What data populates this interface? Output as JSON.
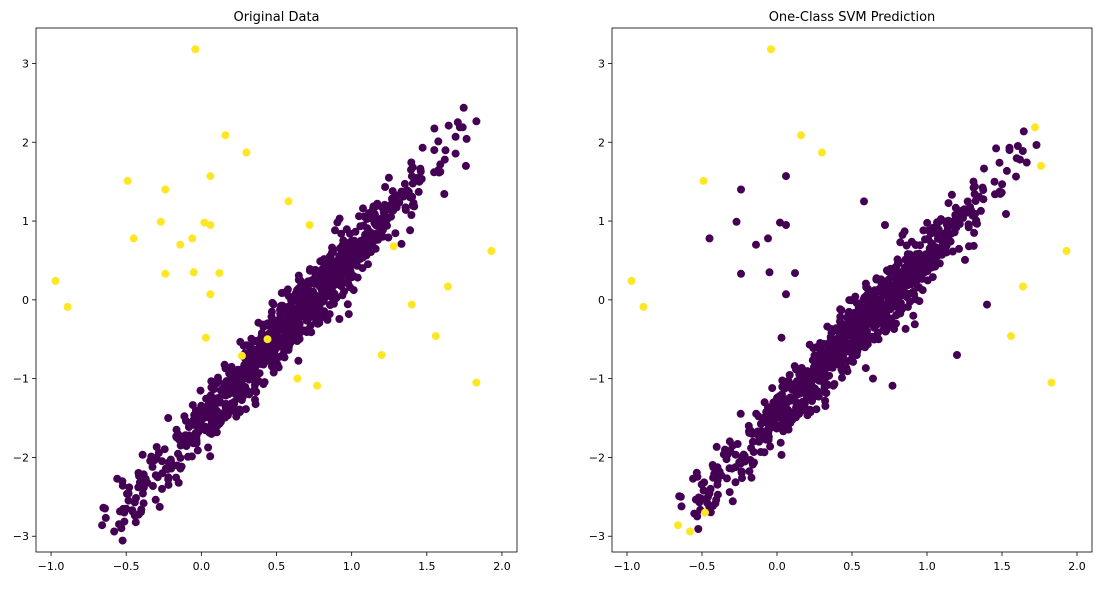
{
  "chart_data": [
    {
      "type": "scatter",
      "title": "Original Data",
      "xlabel": "",
      "ylabel": "",
      "xlim": [
        -1.1,
        2.1
      ],
      "ylim": [
        -3.2,
        3.45
      ],
      "xticks": [
        -1.0,
        -0.5,
        0.0,
        0.5,
        1.0,
        1.5,
        2.0
      ],
      "yticks": [
        -3,
        -2,
        -1,
        0,
        1,
        2,
        3
      ],
      "xtick_labels": [
        "−1.0",
        "−0.5",
        "0.0",
        "0.5",
        "1.0",
        "1.5",
        "2.0"
      ],
      "ytick_labels": [
        "−3",
        "−2",
        "−1",
        "0",
        "1",
        "2",
        "3"
      ],
      "grid": false,
      "legend": "none",
      "colormap": "viridis",
      "colors": {
        "normal": "#440154",
        "outlier": "#fde725"
      },
      "main_cluster": {
        "label": "normal",
        "trend_endpoints": [
          [
            -0.6,
            -2.85
          ],
          [
            1.75,
            2.2
          ]
        ],
        "point_count": 1000,
        "color": "#440154"
      },
      "points": [
        {
          "x": -0.66,
          "y": -2.86,
          "label": "normal"
        },
        {
          "x": -0.58,
          "y": -2.94,
          "label": "normal"
        },
        {
          "x": -0.56,
          "y": -2.27,
          "label": "normal"
        },
        {
          "x": -0.48,
          "y": -2.38,
          "label": "normal"
        },
        {
          "x": -0.46,
          "y": -2.67,
          "label": "normal"
        },
        {
          "x": 1.45,
          "y": 1.5,
          "label": "normal"
        },
        {
          "x": 1.55,
          "y": 1.9,
          "label": "normal"
        },
        {
          "x": 1.62,
          "y": 1.78,
          "label": "normal"
        },
        {
          "x": 1.72,
          "y": 2.19,
          "label": "normal"
        },
        {
          "x": 1.76,
          "y": 1.7,
          "label": "normal"
        },
        {
          "x": -0.04,
          "y": 3.18,
          "label": "outlier"
        },
        {
          "x": 0.16,
          "y": 2.09,
          "label": "outlier"
        },
        {
          "x": 0.3,
          "y": 1.87,
          "label": "outlier"
        },
        {
          "x": -0.49,
          "y": 1.51,
          "label": "outlier"
        },
        {
          "x": -0.24,
          "y": 1.4,
          "label": "outlier"
        },
        {
          "x": 0.06,
          "y": 1.57,
          "label": "outlier"
        },
        {
          "x": 0.58,
          "y": 1.25,
          "label": "outlier"
        },
        {
          "x": -0.27,
          "y": 0.99,
          "label": "outlier"
        },
        {
          "x": 0.02,
          "y": 0.98,
          "label": "outlier"
        },
        {
          "x": 0.06,
          "y": 0.95,
          "label": "outlier"
        },
        {
          "x": 0.72,
          "y": 0.95,
          "label": "outlier"
        },
        {
          "x": -0.45,
          "y": 0.78,
          "label": "outlier"
        },
        {
          "x": -0.14,
          "y": 0.7,
          "label": "outlier"
        },
        {
          "x": -0.06,
          "y": 0.78,
          "label": "outlier"
        },
        {
          "x": 1.28,
          "y": 0.68,
          "label": "outlier"
        },
        {
          "x": 1.93,
          "y": 0.62,
          "label": "outlier"
        },
        {
          "x": -0.97,
          "y": 0.24,
          "label": "outlier"
        },
        {
          "x": -0.89,
          "y": -0.09,
          "label": "outlier"
        },
        {
          "x": -0.24,
          "y": 0.33,
          "label": "outlier"
        },
        {
          "x": -0.05,
          "y": 0.35,
          "label": "outlier"
        },
        {
          "x": 0.12,
          "y": 0.34,
          "label": "outlier"
        },
        {
          "x": 0.06,
          "y": 0.07,
          "label": "outlier"
        },
        {
          "x": 1.64,
          "y": 0.17,
          "label": "outlier"
        },
        {
          "x": 1.4,
          "y": -0.06,
          "label": "outlier"
        },
        {
          "x": 0.03,
          "y": -0.48,
          "label": "outlier"
        },
        {
          "x": 0.44,
          "y": -0.5,
          "label": "outlier"
        },
        {
          "x": 1.56,
          "y": -0.46,
          "label": "outlier"
        },
        {
          "x": 1.2,
          "y": -0.7,
          "label": "outlier"
        },
        {
          "x": 0.27,
          "y": -0.71,
          "label": "outlier"
        },
        {
          "x": 0.64,
          "y": -1.0,
          "label": "outlier"
        },
        {
          "x": 0.77,
          "y": -1.09,
          "label": "outlier"
        },
        {
          "x": 1.83,
          "y": -1.05,
          "label": "outlier"
        }
      ]
    },
    {
      "type": "scatter",
      "title": "One-Class SVM Prediction",
      "xlabel": "",
      "ylabel": "",
      "xlim": [
        -1.1,
        2.1
      ],
      "ylim": [
        -3.2,
        3.45
      ],
      "xticks": [
        -1.0,
        -0.5,
        0.0,
        0.5,
        1.0,
        1.5,
        2.0
      ],
      "yticks": [
        -3,
        -2,
        -1,
        0,
        1,
        2,
        3
      ],
      "xtick_labels": [
        "−1.0",
        "−0.5",
        "0.0",
        "0.5",
        "1.0",
        "1.5",
        "2.0"
      ],
      "ytick_labels": [
        "−3",
        "−2",
        "−1",
        "0",
        "1",
        "2",
        "3"
      ],
      "grid": false,
      "legend": "none",
      "colormap": "viridis",
      "colors": {
        "normal": "#440154",
        "outlier": "#fde725"
      },
      "main_cluster": {
        "label": "normal",
        "trend_endpoints": [
          [
            -0.6,
            -2.7
          ],
          [
            1.65,
            1.9
          ]
        ],
        "point_count": 1000,
        "color": "#440154"
      },
      "points": [
        {
          "x": -0.04,
          "y": 3.18,
          "label": "outlier"
        },
        {
          "x": 0.16,
          "y": 2.09,
          "label": "outlier"
        },
        {
          "x": 0.3,
          "y": 1.87,
          "label": "outlier"
        },
        {
          "x": -0.49,
          "y": 1.51,
          "label": "outlier"
        },
        {
          "x": 1.72,
          "y": 2.19,
          "label": "outlier"
        },
        {
          "x": 1.76,
          "y": 1.7,
          "label": "outlier"
        },
        {
          "x": 1.93,
          "y": 0.62,
          "label": "outlier"
        },
        {
          "x": -0.97,
          "y": 0.24,
          "label": "outlier"
        },
        {
          "x": -0.89,
          "y": -0.09,
          "label": "outlier"
        },
        {
          "x": 1.64,
          "y": 0.17,
          "label": "outlier"
        },
        {
          "x": 1.56,
          "y": -0.46,
          "label": "outlier"
        },
        {
          "x": 1.83,
          "y": -1.05,
          "label": "outlier"
        },
        {
          "x": -0.66,
          "y": -2.86,
          "label": "outlier"
        },
        {
          "x": -0.58,
          "y": -2.94,
          "label": "outlier"
        },
        {
          "x": -0.48,
          "y": -2.7,
          "label": "outlier"
        },
        {
          "x": -0.24,
          "y": 1.4,
          "label": "normal"
        },
        {
          "x": 0.06,
          "y": 1.57,
          "label": "normal"
        },
        {
          "x": 0.58,
          "y": 1.25,
          "label": "normal"
        },
        {
          "x": -0.27,
          "y": 0.99,
          "label": "normal"
        },
        {
          "x": 0.02,
          "y": 0.98,
          "label": "normal"
        },
        {
          "x": 0.06,
          "y": 0.95,
          "label": "normal"
        },
        {
          "x": 0.72,
          "y": 0.95,
          "label": "normal"
        },
        {
          "x": -0.45,
          "y": 0.78,
          "label": "normal"
        },
        {
          "x": -0.14,
          "y": 0.7,
          "label": "normal"
        },
        {
          "x": -0.06,
          "y": 0.78,
          "label": "normal"
        },
        {
          "x": 1.28,
          "y": 0.68,
          "label": "normal"
        },
        {
          "x": -0.24,
          "y": 0.33,
          "label": "normal"
        },
        {
          "x": -0.05,
          "y": 0.35,
          "label": "normal"
        },
        {
          "x": 0.12,
          "y": 0.34,
          "label": "normal"
        },
        {
          "x": 0.06,
          "y": 0.07,
          "label": "normal"
        },
        {
          "x": 1.4,
          "y": -0.06,
          "label": "normal"
        },
        {
          "x": 0.03,
          "y": -0.48,
          "label": "normal"
        },
        {
          "x": 1.2,
          "y": -0.7,
          "label": "normal"
        },
        {
          "x": 0.64,
          "y": -1.0,
          "label": "normal"
        },
        {
          "x": 0.77,
          "y": -1.09,
          "label": "normal"
        },
        {
          "x": 1.45,
          "y": 1.5,
          "label": "normal"
        },
        {
          "x": 1.55,
          "y": 1.9,
          "label": "normal"
        },
        {
          "x": 1.62,
          "y": 1.78,
          "label": "normal"
        },
        {
          "x": -0.56,
          "y": -2.27,
          "label": "normal"
        },
        {
          "x": -0.46,
          "y": -2.5,
          "label": "normal"
        }
      ]
    }
  ]
}
